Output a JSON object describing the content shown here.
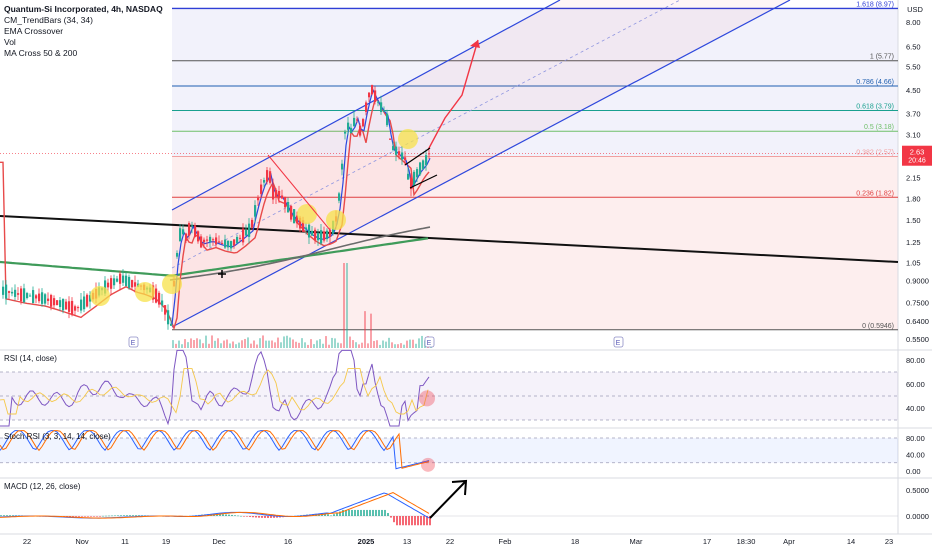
{
  "header": {
    "title": "Quantum-Si Incorporated, 4h, NASDAQ",
    "indicators": [
      "CM_TrendBars (34, 34)",
      "EMA Crossover",
      "Vol",
      "MA Cross 50 & 200"
    ]
  },
  "currency": "USD",
  "price_badge": {
    "price": "2.63",
    "countdown": "20:46",
    "color": "#f23645"
  },
  "chart_data": [
    {
      "type": "candlestick",
      "name": "price",
      "y_scale": "log",
      "y_ticks": [
        "8.00",
        "6.50",
        "5.50",
        "4.50",
        "3.70",
        "3.10",
        "2.50",
        "2.15",
        "1.80",
        "1.50",
        "1.25",
        "1.05",
        "0.9000",
        "0.7500",
        "0.6400",
        "0.5500"
      ],
      "x_ticks": [
        "22",
        "Nov",
        "11",
        "19",
        "Dec",
        "16",
        "2025",
        "13",
        "22",
        "Feb",
        "18",
        "Mar",
        "17",
        "18:30",
        "Apr",
        "14",
        "23"
      ],
      "fib_levels": [
        {
          "label": "1.618 (8.97)",
          "value": 8.97,
          "color": "#2f3fd6"
        },
        {
          "label": "1 (5.77)",
          "value": 5.77,
          "color": "#555555"
        },
        {
          "label": "0.786 (4.66)",
          "value": 4.66,
          "color": "#1f5fb0"
        },
        {
          "label": "0.618 (3.79)",
          "value": 3.79,
          "color": "#19a08f"
        },
        {
          "label": "0.5 (3.18)",
          "value": 3.18,
          "color": "#6fbf6a"
        },
        {
          "label": "0.382 (2.57)",
          "value": 2.57,
          "color": "#f0a0a0"
        },
        {
          "label": "0.236 (1.82)",
          "value": 1.82,
          "color": "#e04040"
        },
        {
          "label": "0 (0.5946)",
          "value": 0.5946,
          "color": "#555555"
        }
      ],
      "event_markers": [
        "E",
        "E",
        "E"
      ]
    },
    {
      "type": "line",
      "name": "RSI",
      "title": "RSI (14, close)",
      "y_ticks": [
        "80.00",
        "60.00",
        "40.00"
      ],
      "levels": [
        70,
        50,
        30
      ]
    },
    {
      "type": "line",
      "name": "Stoch RSI",
      "title": "Stoch RSI (3, 3, 14, 14, close)",
      "y_ticks": [
        "80.00",
        "40.00",
        "0.00"
      ],
      "levels": [
        80,
        20
      ]
    },
    {
      "type": "bar",
      "name": "MACD",
      "title": "MACD (12, 26, close)",
      "y_ticks": [
        "0.5000",
        "0.0000"
      ]
    }
  ],
  "colors": {
    "bull": "#22ab94",
    "bear": "#f23645",
    "channel": "#2a49e0",
    "ema_red": "#e84a4a",
    "ema_blue": "#2a49e0",
    "ma_green": "#3f9b5a",
    "ma_black": "#111111",
    "rsi": "#7e57c2",
    "rsi_signal": "#f5c84a",
    "stoch_k": "#2962ff",
    "stoch_d": "#ff6d00",
    "macd": "#2962ff",
    "macd_signal": "#ff6d00",
    "highlight": "#f7e24a"
  }
}
